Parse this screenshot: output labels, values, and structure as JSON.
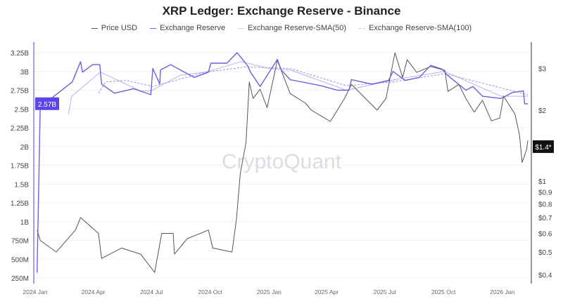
{
  "chart_data": {
    "type": "line",
    "title": "XRP Ledger: Exchange Reserve - Binance",
    "watermark": "CryptoQuant",
    "x_ticks": [
      "2024 Jan",
      "2024 Apr",
      "2024 Jul",
      "2024 Oct",
      "2025 Jan",
      "2025 Apr",
      "2025 Jul",
      "2025 Oct",
      "2026 Jan"
    ],
    "y_left": {
      "ticks": [
        "250M",
        "500M",
        "750M",
        "1B",
        "1.25B",
        "1.5B",
        "1.75B",
        "2B",
        "2.25B",
        "2.5B",
        "2.75B",
        "3B",
        "3.25B"
      ],
      "range_billions": [
        0.25,
        3.25
      ],
      "current_label": "2.57B"
    },
    "y_right": {
      "scale": "log",
      "ticks": [
        "$0.4",
        "$0.5",
        "$0.6",
        "$0.7",
        "$0.8",
        "$0.9",
        "$1",
        "$2",
        "$3"
      ],
      "tick_values": [
        0.4,
        0.5,
        0.6,
        0.7,
        0.8,
        0.9,
        1,
        2,
        3
      ],
      "current_label": "$1.4*"
    },
    "grid": true,
    "legend_position": "top",
    "series": [
      {
        "name": "Price USD",
        "axis": "right",
        "color": "#555555",
        "style": "solid",
        "points": [
          [
            "2024-01-04",
            0.62
          ],
          [
            "2024-01-09",
            0.56
          ],
          [
            "2024-02-03",
            0.5
          ],
          [
            "2024-03-04",
            0.62
          ],
          [
            "2024-03-12",
            0.7
          ],
          [
            "2024-04-09",
            0.6
          ],
          [
            "2024-04-14",
            0.47
          ],
          [
            "2024-05-15",
            0.52
          ],
          [
            "2024-06-14",
            0.49
          ],
          [
            "2024-07-06",
            0.41
          ],
          [
            "2024-07-17",
            0.6
          ],
          [
            "2024-08-04",
            0.6
          ],
          [
            "2024-08-06",
            0.49
          ],
          [
            "2024-08-26",
            0.57
          ],
          [
            "2024-09-28",
            0.62
          ],
          [
            "2024-10-05",
            0.52
          ],
          [
            "2024-11-04",
            0.5
          ],
          [
            "2024-11-11",
            0.69
          ],
          [
            "2024-11-17",
            1.08
          ],
          [
            "2024-11-26",
            1.46
          ],
          [
            "2024-12-01",
            2.63
          ],
          [
            "2024-12-07",
            2.24
          ],
          [
            "2024-12-18",
            2.45
          ],
          [
            "2024-12-29",
            2.05
          ],
          [
            "2025-01-14",
            3.25
          ],
          [
            "2025-02-03",
            2.35
          ],
          [
            "2025-02-27",
            2.14
          ],
          [
            "2025-03-08",
            2.0
          ],
          [
            "2025-04-07",
            1.79
          ],
          [
            "2025-04-29",
            2.24
          ],
          [
            "2025-05-10",
            2.57
          ],
          [
            "2025-06-19",
            2.0
          ],
          [
            "2025-07-03",
            2.24
          ],
          [
            "2025-07-17",
            3.5
          ],
          [
            "2025-07-29",
            2.75
          ],
          [
            "2025-08-05",
            3.27
          ],
          [
            "2025-08-20",
            2.89
          ],
          [
            "2025-09-11",
            3.06
          ],
          [
            "2025-10-03",
            2.95
          ],
          [
            "2025-10-08",
            2.4
          ],
          [
            "2025-10-25",
            2.57
          ],
          [
            "2025-11-05",
            2.24
          ],
          [
            "2025-11-18",
            1.96
          ],
          [
            "2025-12-01",
            2.2
          ],
          [
            "2025-12-15",
            1.8
          ],
          [
            "2025-12-28",
            1.85
          ],
          [
            "2026-01-03",
            2.29
          ],
          [
            "2026-01-21",
            1.92
          ],
          [
            "2026-01-28",
            1.56
          ],
          [
            "2026-02-01",
            1.2
          ],
          [
            "2026-02-08",
            1.36
          ],
          [
            "2026-02-10",
            1.49
          ]
        ]
      },
      {
        "name": "Exchange Reserve",
        "axis": "left",
        "unit": "billions",
        "color": "#6f5fe0",
        "style": "solid",
        "points": [
          [
            "2024-01-04",
            0.32
          ],
          [
            "2024-01-09",
            2.61
          ],
          [
            "2024-01-26",
            2.64
          ],
          [
            "2024-02-28",
            2.86
          ],
          [
            "2024-03-12",
            3.13
          ],
          [
            "2024-03-15",
            2.99
          ],
          [
            "2024-03-31",
            3.09
          ],
          [
            "2024-04-11",
            3.09
          ],
          [
            "2024-04-14",
            2.83
          ],
          [
            "2024-05-04",
            2.71
          ],
          [
            "2024-06-03",
            2.77
          ],
          [
            "2024-06-30",
            2.69
          ],
          [
            "2024-07-03",
            3.04
          ],
          [
            "2024-07-14",
            2.83
          ],
          [
            "2024-07-15",
            3.02
          ],
          [
            "2024-07-31",
            3.09
          ],
          [
            "2024-08-15",
            3.02
          ],
          [
            "2024-09-06",
            2.92
          ],
          [
            "2024-09-28",
            2.99
          ],
          [
            "2024-10-02",
            3.11
          ],
          [
            "2024-10-27",
            3.11
          ],
          [
            "2024-11-12",
            3.25
          ],
          [
            "2024-11-28",
            3.08
          ],
          [
            "2024-12-03",
            2.99
          ],
          [
            "2024-12-18",
            2.8
          ],
          [
            "2025-01-14",
            3.16
          ],
          [
            "2025-01-20",
            3.02
          ],
          [
            "2025-02-03",
            2.89
          ],
          [
            "2025-03-23",
            2.81
          ],
          [
            "2025-04-18",
            2.75
          ],
          [
            "2025-05-06",
            2.75
          ],
          [
            "2025-05-10",
            2.89
          ],
          [
            "2025-06-11",
            2.83
          ],
          [
            "2025-07-07",
            2.88
          ],
          [
            "2025-07-14",
            3.0
          ],
          [
            "2025-08-02",
            2.88
          ],
          [
            "2025-08-24",
            2.92
          ],
          [
            "2025-09-11",
            3.08
          ],
          [
            "2025-09-29",
            3.03
          ],
          [
            "2025-10-07",
            2.95
          ],
          [
            "2025-11-05",
            2.75
          ],
          [
            "2025-11-16",
            2.8
          ],
          [
            "2025-12-01",
            2.67
          ],
          [
            "2025-12-30",
            2.64
          ],
          [
            "2026-01-17",
            2.72
          ],
          [
            "2026-02-03",
            2.74
          ],
          [
            "2026-02-05",
            2.57
          ],
          [
            "2026-02-10",
            2.57
          ]
        ]
      },
      {
        "name": "Exchange Reserve-SMA(50)",
        "axis": "left",
        "unit": "billions",
        "color": "#b9b0ee",
        "style": "solid",
        "points": [
          [
            "2024-02-22",
            2.43
          ],
          [
            "2024-02-27",
            2.67
          ],
          [
            "2024-04-12",
            2.99
          ],
          [
            "2024-06-14",
            2.74
          ],
          [
            "2024-06-30",
            2.74
          ],
          [
            "2024-08-15",
            2.95
          ],
          [
            "2024-09-24",
            2.99
          ],
          [
            "2024-11-18",
            3.13
          ],
          [
            "2025-01-01",
            3.04
          ],
          [
            "2025-02-03",
            3.02
          ],
          [
            "2025-05-02",
            2.75
          ],
          [
            "2025-07-22",
            2.9
          ],
          [
            "2025-10-03",
            3.0
          ],
          [
            "2025-12-30",
            2.67
          ],
          [
            "2026-02-10",
            2.67
          ]
        ]
      },
      {
        "name": "Exchange Reserve-SMA(100)",
        "axis": "left",
        "unit": "billions",
        "color": "#9c90ea",
        "style": "dashed",
        "points": [
          [
            "2024-04-09",
            2.71
          ],
          [
            "2024-04-20",
            2.86
          ],
          [
            "2024-05-23",
            2.88
          ],
          [
            "2024-07-03",
            2.8
          ],
          [
            "2024-09-24",
            2.99
          ],
          [
            "2024-11-26",
            3.06
          ],
          [
            "2025-02-03",
            3.04
          ],
          [
            "2025-05-02",
            2.81
          ],
          [
            "2025-07-14",
            2.86
          ],
          [
            "2025-10-03",
            2.97
          ],
          [
            "2026-02-10",
            2.69
          ]
        ]
      }
    ]
  }
}
